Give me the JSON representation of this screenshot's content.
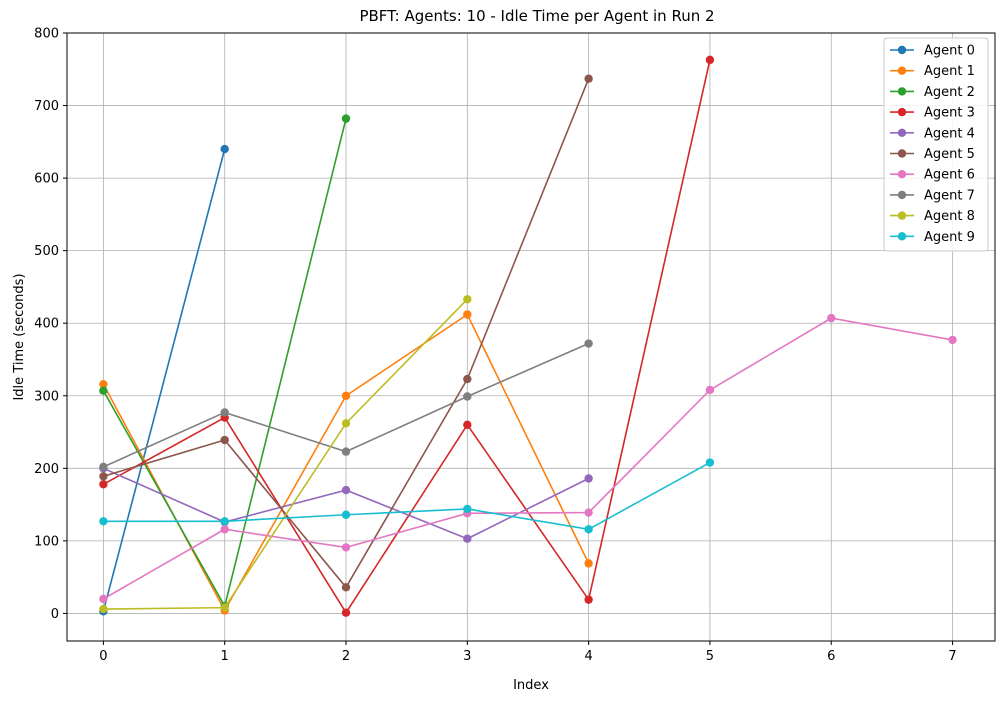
{
  "chart_data": {
    "type": "line",
    "title": "PBFT: Agents: 10 - Idle Time per Agent in Run 2",
    "xlabel": "Index",
    "ylabel": "Idle Time (seconds)",
    "xlim": [
      -0.3,
      7.35
    ],
    "ylim": [
      -38,
      800
    ],
    "xticks": [
      0,
      1,
      2,
      3,
      4,
      5,
      6,
      7
    ],
    "yticks": [
      0,
      100,
      200,
      300,
      400,
      500,
      600,
      700,
      800
    ],
    "grid": true,
    "legend_position": "top-right",
    "series": [
      {
        "name": "Agent 0",
        "color": "#1f77b4",
        "x": [
          0,
          1
        ],
        "values": [
          3,
          640
        ]
      },
      {
        "name": "Agent 1",
        "color": "#ff7f0e",
        "x": [
          0,
          1,
          2,
          3,
          4
        ],
        "values": [
          316,
          4,
          300,
          412,
          69
        ]
      },
      {
        "name": "Agent 2",
        "color": "#2ca02c",
        "x": [
          0,
          1,
          2
        ],
        "values": [
          307,
          10,
          682
        ]
      },
      {
        "name": "Agent 3",
        "color": "#d62728",
        "x": [
          0,
          1,
          2,
          3,
          4,
          5
        ],
        "values": [
          178,
          270,
          1,
          260,
          19,
          763
        ]
      },
      {
        "name": "Agent 4",
        "color": "#9467bd",
        "x": [
          0,
          1,
          2,
          3,
          4
        ],
        "values": [
          200,
          126,
          170,
          103,
          186
        ]
      },
      {
        "name": "Agent 5",
        "color": "#8c564b",
        "x": [
          0,
          1,
          2,
          3,
          4
        ],
        "values": [
          189,
          239,
          36,
          323,
          737
        ]
      },
      {
        "name": "Agent 6",
        "color": "#e377c2",
        "x": [
          0,
          1,
          2,
          3,
          4,
          5,
          6,
          7
        ],
        "values": [
          20,
          116,
          91,
          138,
          139,
          308,
          407,
          377
        ]
      },
      {
        "name": "Agent 7",
        "color": "#7f7f7f",
        "x": [
          0,
          1,
          2,
          3,
          4
        ],
        "values": [
          202,
          277,
          223,
          299,
          372
        ]
      },
      {
        "name": "Agent 8",
        "color": "#bcbd22",
        "x": [
          0,
          1,
          2,
          3
        ],
        "values": [
          6,
          8,
          262,
          433
        ]
      },
      {
        "name": "Agent 9",
        "color": "#17becf",
        "x": [
          0,
          1,
          2,
          3,
          4,
          5
        ],
        "values": [
          127,
          127,
          136,
          144,
          116,
          208
        ]
      }
    ]
  }
}
